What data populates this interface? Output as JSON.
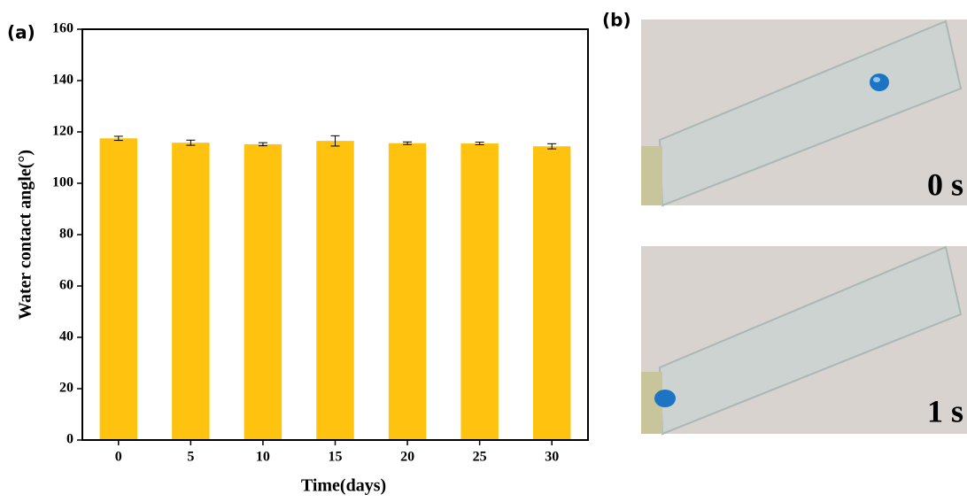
{
  "panels": {
    "a": "(a)",
    "b": "(b)"
  },
  "photos": [
    {
      "label": "0 s"
    },
    {
      "label": "1 s"
    }
  ],
  "chart_data": {
    "type": "bar",
    "xlabel": "Time(days)",
    "ylabel": "Water contact angle(°)",
    "categories": [
      "0",
      "5",
      "10",
      "15",
      "20",
      "25",
      "30"
    ],
    "values": [
      117.5,
      115.8,
      115.2,
      116.5,
      115.6,
      115.5,
      114.4
    ],
    "errors": [
      0.8,
      1.0,
      0.6,
      2.0,
      0.5,
      0.5,
      1.0
    ],
    "color": "#ffc20e",
    "ylim": [
      0,
      160
    ],
    "yticks": [
      0,
      20,
      40,
      60,
      80,
      100,
      120,
      140,
      160
    ],
    "grid": false
  }
}
